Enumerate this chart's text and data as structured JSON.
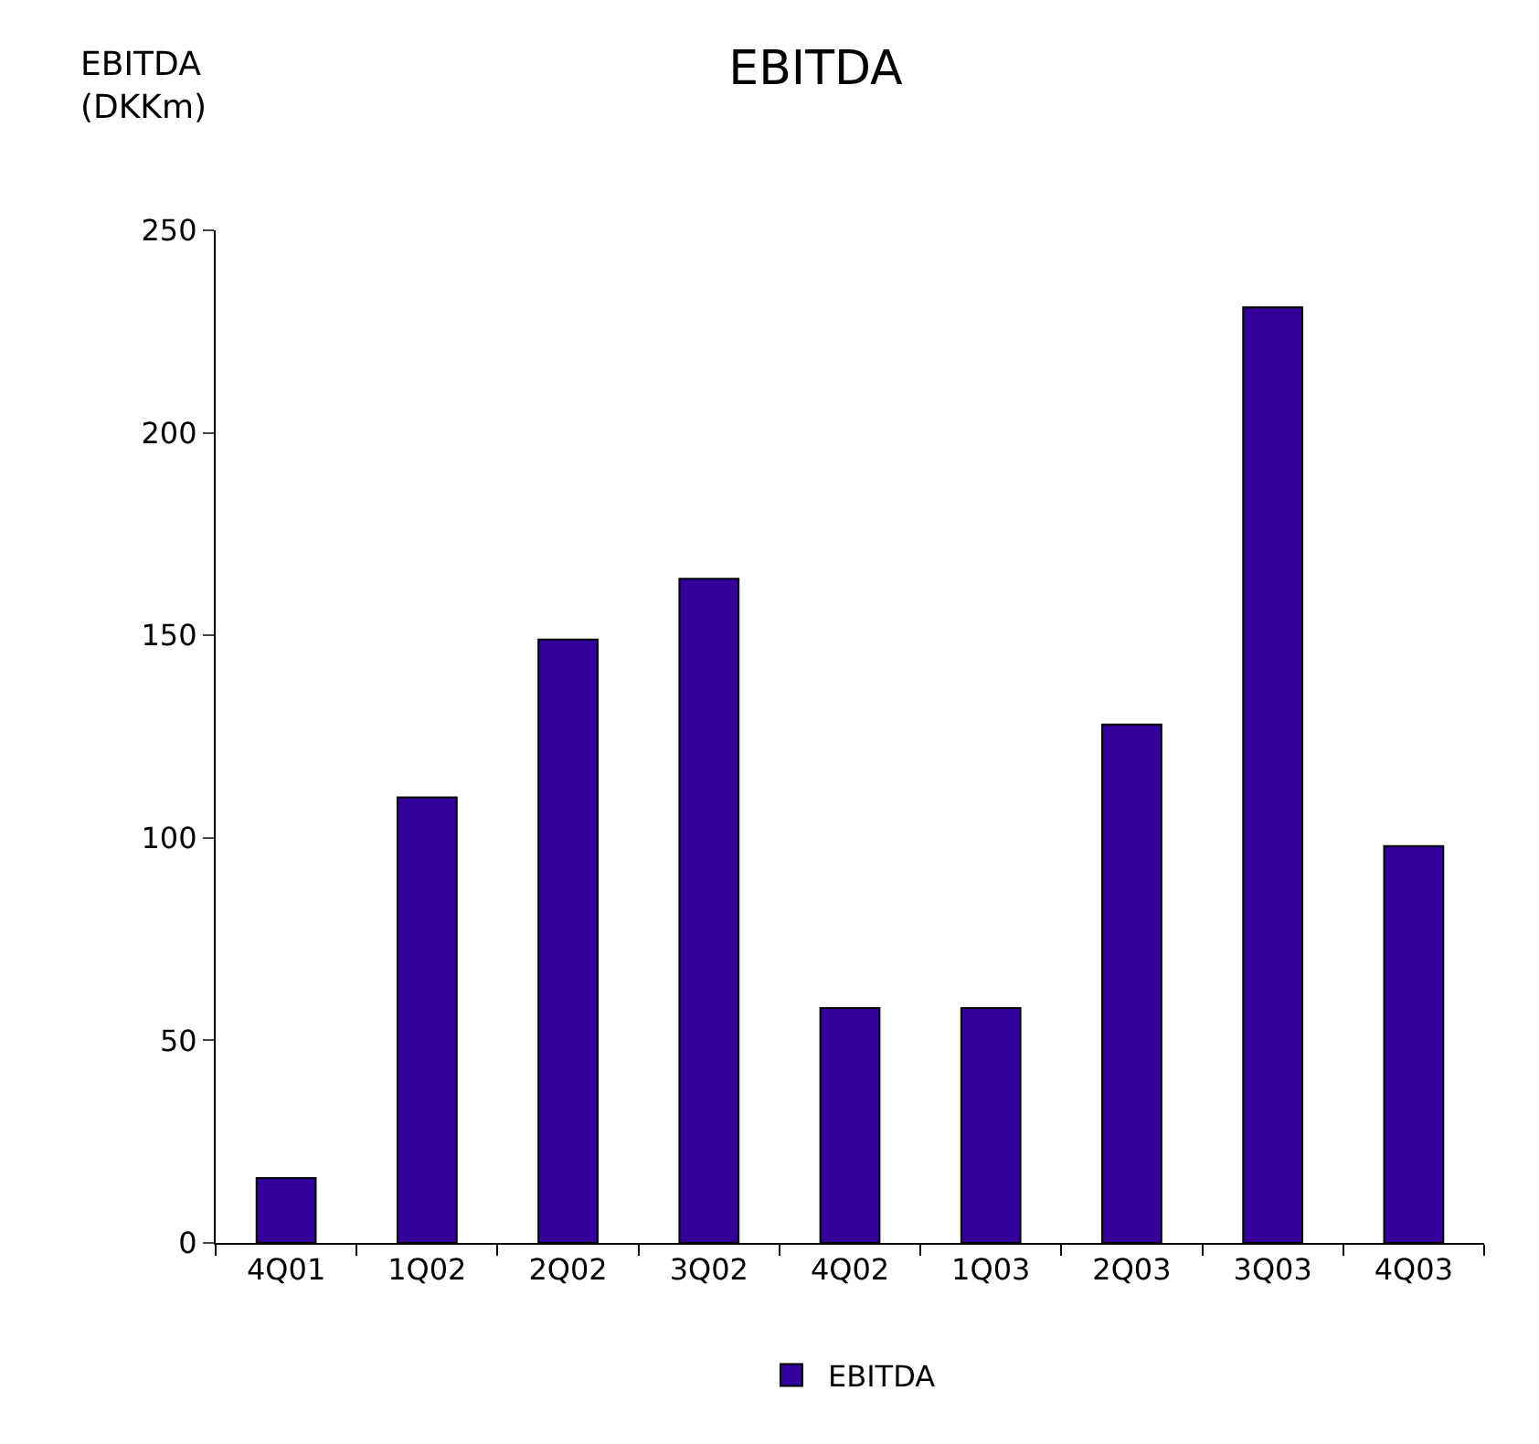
{
  "chart_data": {
    "type": "bar",
    "title": "EBITDA",
    "ylabel": "EBITDA\n(DKKm)",
    "categories": [
      "4Q01",
      "1Q02",
      "2Q02",
      "3Q02",
      "4Q02",
      "1Q03",
      "2Q03",
      "3Q03",
      "4Q03"
    ],
    "series": [
      {
        "name": "EBITDA",
        "color": "#330099",
        "values": [
          16,
          110,
          149,
          164,
          58,
          58,
          128,
          231,
          98
        ]
      }
    ],
    "ylim": [
      0,
      250
    ],
    "yticks": [
      0,
      50,
      100,
      150,
      200,
      250
    ],
    "legend": "bottom"
  }
}
